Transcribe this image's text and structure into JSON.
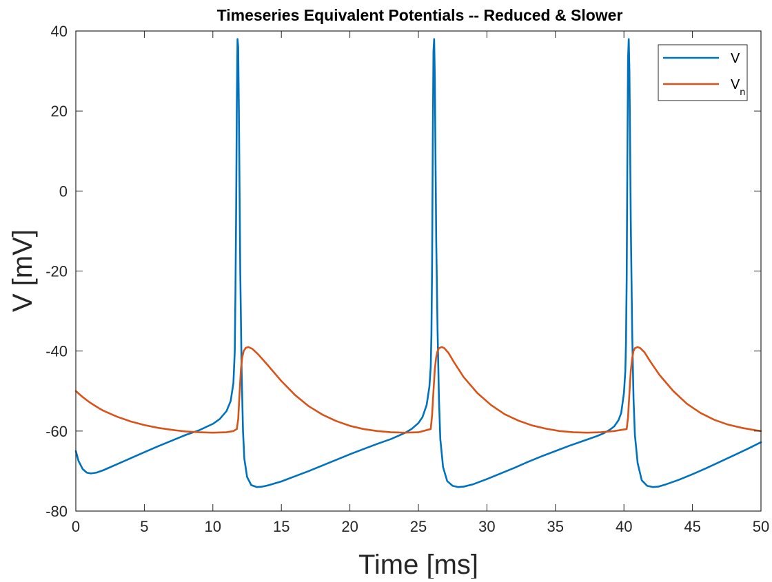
{
  "chart_data": {
    "type": "line",
    "title": "Timeseries Equivalent Potentials -- Reduced & Slower",
    "xlabel": "Time [ms]",
    "ylabel": "V [mV]",
    "xlim": [
      0,
      50
    ],
    "ylim": [
      -80,
      40
    ],
    "xticks": [
      0,
      5,
      10,
      15,
      20,
      25,
      30,
      35,
      40,
      45,
      50
    ],
    "yticks": [
      -80,
      -60,
      -40,
      -20,
      0,
      20,
      40
    ],
    "grid": false,
    "legend_position": "top-right",
    "series": [
      {
        "name": "V",
        "color": "#0072BD",
        "x": [
          0,
          0.2,
          0.5,
          0.8,
          1.1,
          1.5,
          2,
          3,
          4,
          5,
          6,
          7,
          8,
          9,
          10,
          10.5,
          11,
          11.3,
          11.5,
          11.6,
          11.65,
          11.7,
          11.75,
          11.8,
          11.85,
          11.9,
          11.95,
          12.0,
          12.1,
          12.2,
          12.3,
          12.5,
          12.8,
          13.2,
          13.6,
          14,
          15,
          16,
          17,
          18,
          19,
          20,
          21,
          22,
          23,
          24,
          24.5,
          25,
          25.3,
          25.6,
          25.8,
          25.9,
          25.95,
          26.0,
          26.05,
          26.1,
          26.15,
          26.2,
          26.25,
          26.3,
          26.4,
          26.5,
          26.6,
          26.8,
          27.1,
          27.5,
          27.9,
          28.3,
          29,
          30,
          31,
          32,
          33,
          34,
          35,
          36,
          37,
          38,
          38.5,
          39,
          39.3,
          39.6,
          39.8,
          40.0,
          40.1,
          40.15,
          40.2,
          40.25,
          40.3,
          40.35,
          40.4,
          40.45,
          40.5,
          40.6,
          40.7,
          40.8,
          41.0,
          41.3,
          41.7,
          42.1,
          42.5,
          43,
          44,
          45,
          46,
          47,
          48,
          49,
          50
        ],
        "y": [
          -65,
          -67.5,
          -69.5,
          -70.4,
          -70.6,
          -70.4,
          -69.8,
          -68.3,
          -66.8,
          -65.3,
          -63.8,
          -62.4,
          -61.0,
          -59.8,
          -58.2,
          -57.0,
          -55.0,
          -52.5,
          -48.0,
          -40.0,
          -25.0,
          -5.0,
          22.0,
          38.0,
          36.0,
          20.0,
          0.0,
          -20.0,
          -45.0,
          -60.0,
          -67.0,
          -71.5,
          -73.5,
          -74.0,
          -73.9,
          -73.6,
          -72.6,
          -71.3,
          -70.0,
          -68.6,
          -67.2,
          -65.8,
          -64.5,
          -63.2,
          -62.0,
          -60.5,
          -59.5,
          -58.0,
          -56.5,
          -53.5,
          -49.0,
          -44.0,
          -36.0,
          -18.0,
          12.0,
          35.0,
          38.0,
          28.0,
          8.0,
          -12.0,
          -35.0,
          -52.0,
          -62.0,
          -69.0,
          -72.5,
          -73.7,
          -74.0,
          -73.9,
          -73.3,
          -72.0,
          -70.6,
          -69.2,
          -67.7,
          -66.3,
          -65.0,
          -63.7,
          -62.5,
          -61.3,
          -60.6,
          -59.6,
          -58.8,
          -57.3,
          -55.5,
          -50.5,
          -45.0,
          -38.0,
          -22.0,
          8.0,
          33.0,
          38.0,
          30.0,
          12.0,
          -8.0,
          -35.0,
          -52.0,
          -61.0,
          -68.0,
          -72.3,
          -73.7,
          -74.0,
          -73.9,
          -73.4,
          -72.2,
          -70.8,
          -69.3,
          -67.7,
          -66.1,
          -64.5,
          -62.8
        ]
      },
      {
        "name": "V_n",
        "color": "#D95319",
        "x": [
          0,
          0.5,
          1,
          1.5,
          2,
          3,
          4,
          5,
          6,
          7,
          8,
          9,
          10,
          11,
          11.5,
          11.75,
          11.85,
          11.95,
          12.05,
          12.15,
          12.25,
          12.4,
          12.6,
          12.9,
          13.3,
          14,
          15,
          16,
          17,
          18,
          19,
          20,
          21,
          22,
          23,
          24,
          25,
          25.9,
          26.0,
          26.1,
          26.2,
          26.3,
          26.4,
          26.5,
          26.7,
          26.9,
          27.2,
          27.6,
          28.3,
          29.3,
          30.3,
          31.3,
          32.3,
          33.3,
          34.3,
          35.3,
          36.3,
          37.3,
          38.3,
          39.3,
          40.2,
          40.3,
          40.4,
          40.5,
          40.6,
          40.7,
          40.8,
          41.0,
          41.2,
          41.5,
          41.9,
          42.6,
          43.6,
          44.6,
          45.6,
          46.6,
          47.6,
          48.6,
          49.6,
          50
        ],
        "y": [
          -50,
          -51.5,
          -52.8,
          -53.9,
          -54.9,
          -56.4,
          -57.6,
          -58.5,
          -59.2,
          -59.7,
          -60.1,
          -60.3,
          -60.4,
          -60.3,
          -60.0,
          -59.5,
          -57.0,
          -50.5,
          -44.5,
          -41.5,
          -40.0,
          -39.2,
          -39.0,
          -39.5,
          -40.8,
          -43.5,
          -47.5,
          -51.0,
          -53.8,
          -55.9,
          -57.5,
          -58.7,
          -59.5,
          -60.0,
          -60.3,
          -60.4,
          -60.3,
          -59.5,
          -56.0,
          -50.0,
          -44.5,
          -41.5,
          -40.0,
          -39.3,
          -39.0,
          -39.3,
          -40.5,
          -42.8,
          -46.5,
          -50.5,
          -53.5,
          -55.8,
          -57.4,
          -58.6,
          -59.4,
          -60.0,
          -60.3,
          -60.4,
          -60.3,
          -60.0,
          -59.5,
          -56.5,
          -50.5,
          -45.0,
          -41.8,
          -40.0,
          -39.3,
          -39.0,
          -39.3,
          -40.3,
          -42.5,
          -46.0,
          -50.0,
          -53.2,
          -55.5,
          -57.2,
          -58.4,
          -59.2,
          -59.8,
          -60.0
        ]
      }
    ]
  }
}
